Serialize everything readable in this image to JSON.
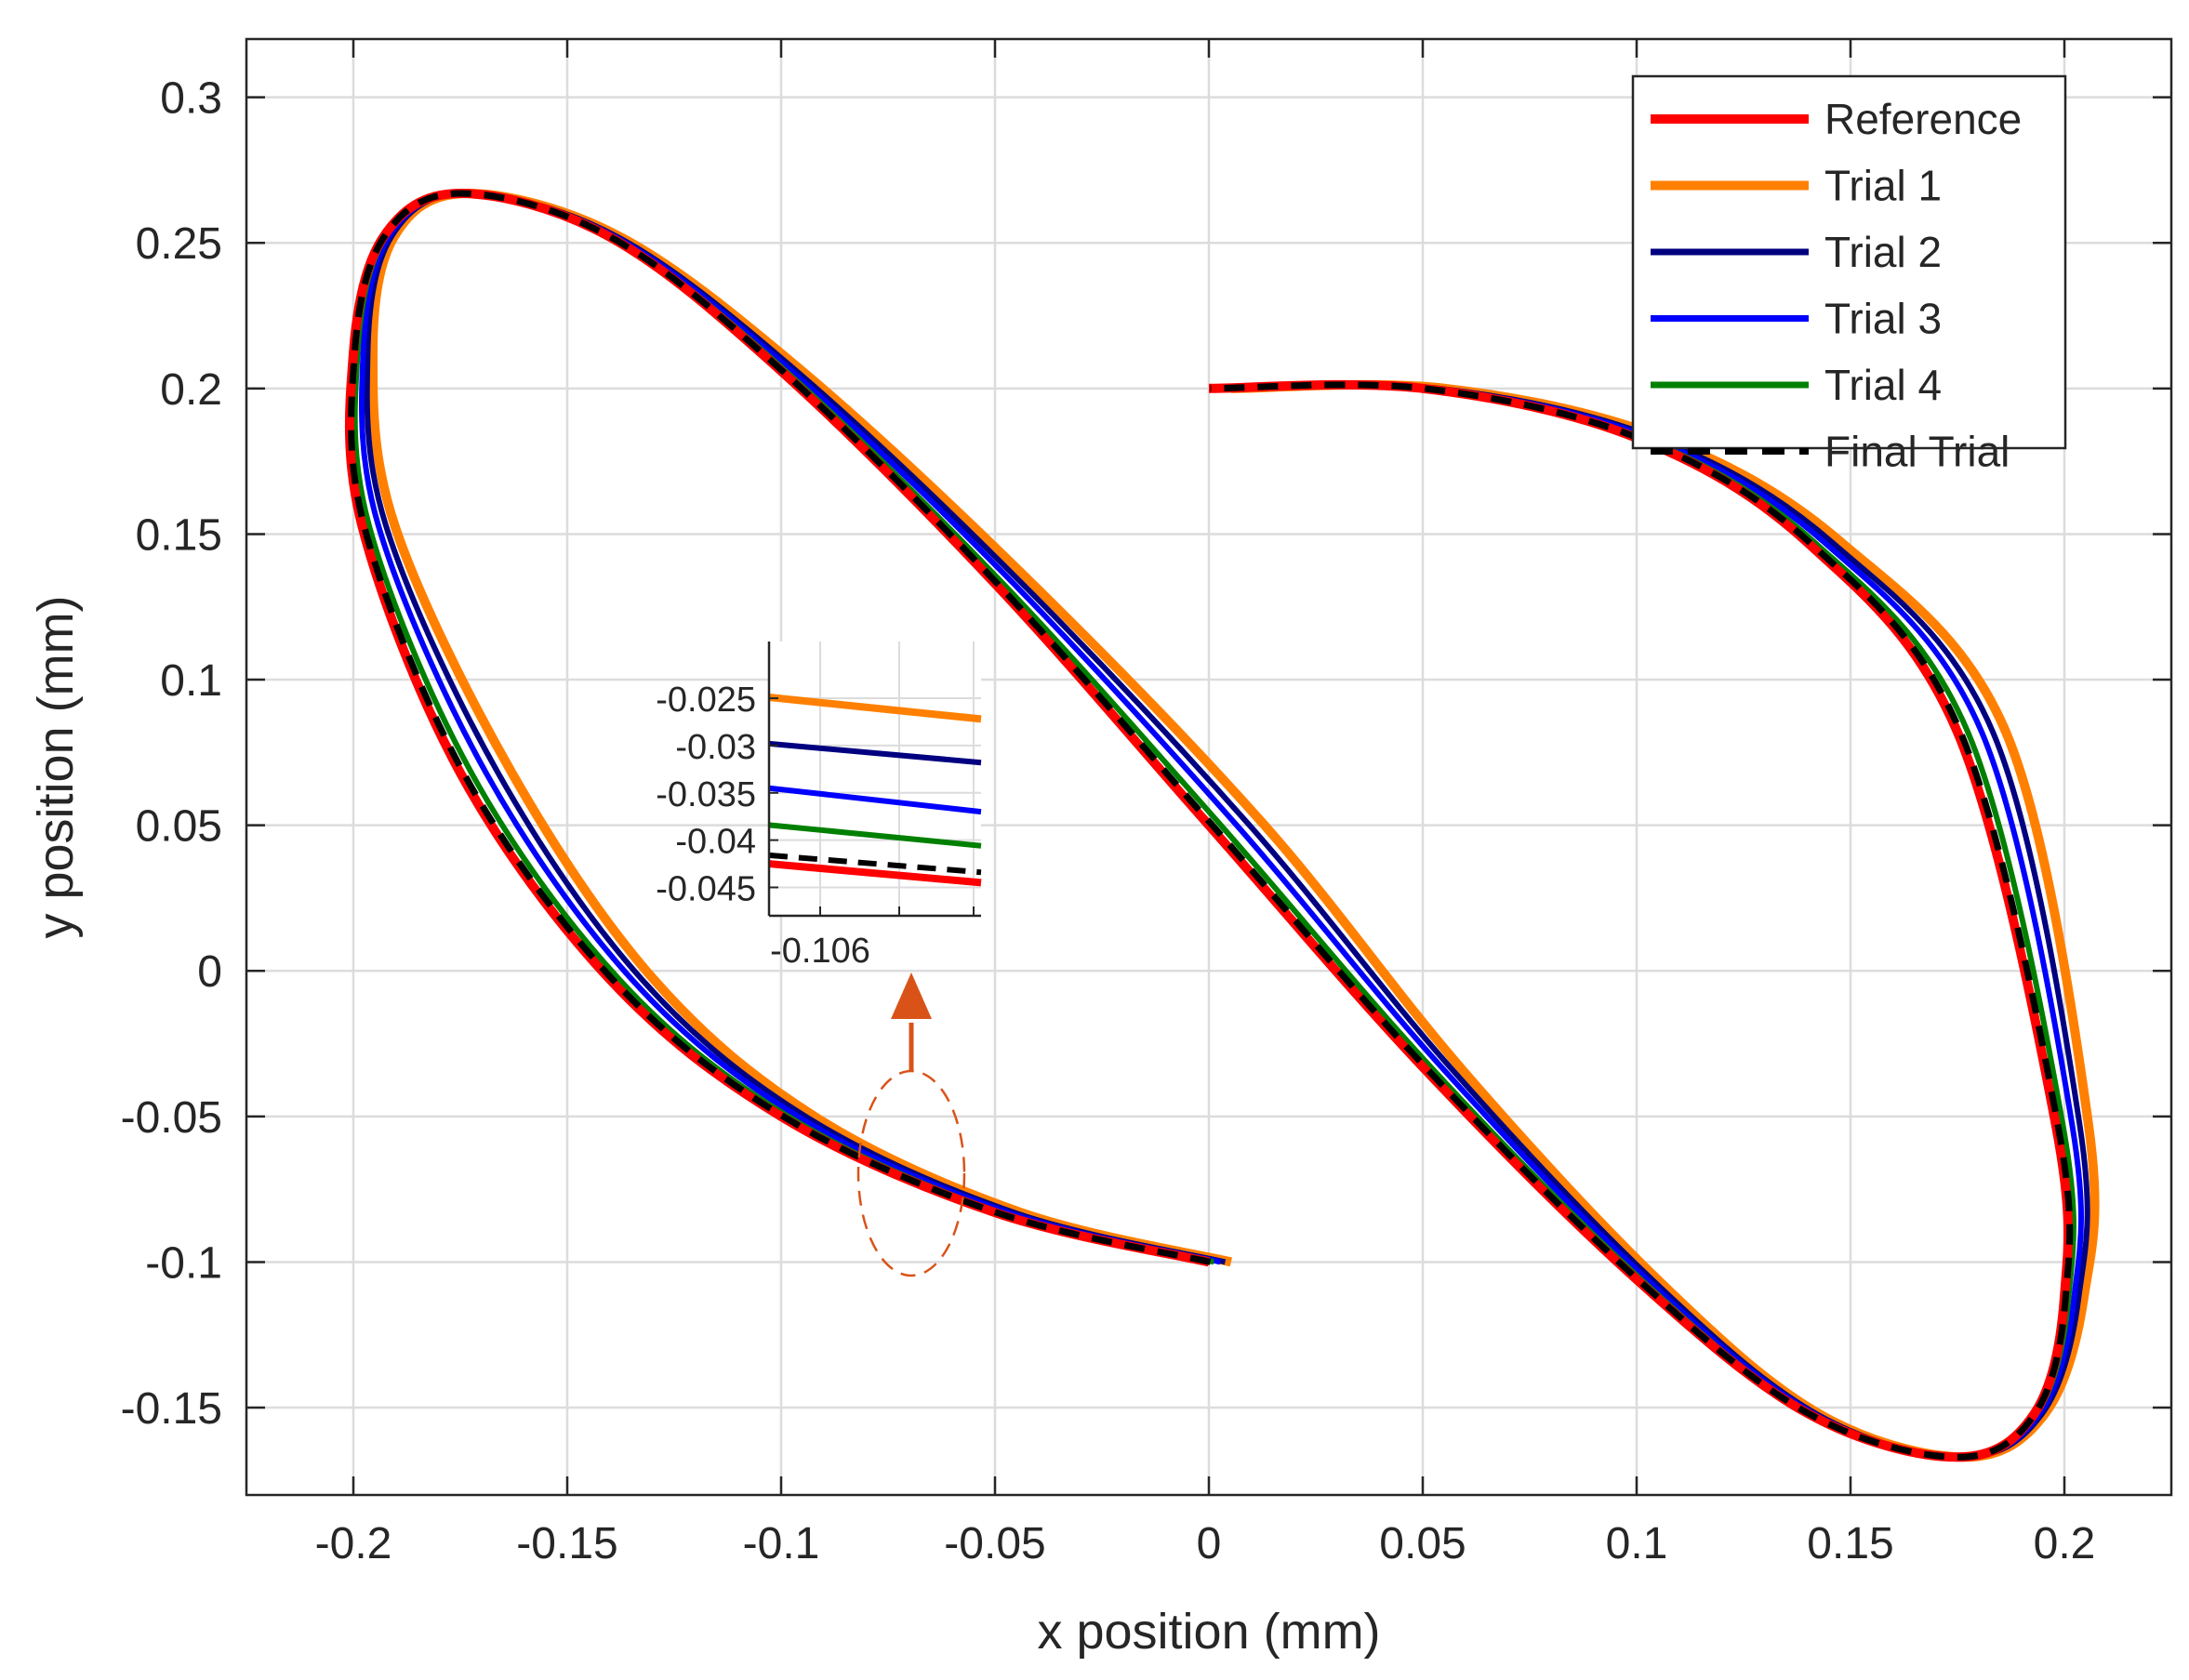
{
  "chart_data": {
    "type": "line",
    "xlabel": "x position (mm)",
    "ylabel": "y position (mm)",
    "xlim": [
      -0.225,
      0.225
    ],
    "ylim": [
      -0.18,
      0.32
    ],
    "x_ticks": [
      -0.2,
      -0.15,
      -0.1,
      -0.05,
      0,
      0.05,
      0.1,
      0.15,
      0.2
    ],
    "x_tick_labels": [
      "-0.2",
      "-0.15",
      "-0.1",
      "-0.05",
      "0",
      "0.05",
      "0.1",
      "0.15",
      "0.2"
    ],
    "y_ticks": [
      -0.15,
      -0.1,
      -0.05,
      0,
      0.05,
      0.1,
      0.15,
      0.2,
      0.25,
      0.3
    ],
    "y_tick_labels": [
      "-0.15",
      "-0.1",
      "-0.05",
      "0",
      "0.05",
      "0.1",
      "0.15",
      "0.2",
      "0.25",
      "0.3"
    ],
    "grid": true,
    "legend_position": "top-right",
    "series": [
      {
        "name": "Reference",
        "color": "#ff0000",
        "style": "solid",
        "x_offset": 0.0,
        "x": [
          0,
          -0.05,
          -0.1,
          -0.14,
          -0.175,
          -0.198,
          -0.2,
          -0.193,
          -0.175,
          -0.14,
          -0.1,
          -0.05,
          0,
          0.05,
          0.1,
          0.14,
          0.175,
          0.193,
          0.2,
          0.198,
          0.175,
          0.14,
          0.1,
          0.05,
          0
        ],
        "y": [
          -0.1,
          -0.083,
          -0.05,
          -0.003,
          0.068,
          0.153,
          0.212,
          0.252,
          0.267,
          0.252,
          0.206,
          0.133,
          0.05,
          -0.033,
          -0.106,
          -0.152,
          -0.167,
          -0.152,
          -0.112,
          -0.053,
          0.082,
          0.147,
          0.183,
          0.2,
          0.2
        ]
      },
      {
        "name": "Trial 1",
        "color": "#ff8000",
        "style": "solid",
        "x_offset": 0.013,
        "x": [
          0,
          -0.05,
          -0.1,
          -0.14,
          -0.175,
          -0.198,
          -0.2,
          -0.193,
          -0.175,
          -0.14,
          -0.1,
          -0.05,
          0,
          0.05,
          0.1,
          0.14,
          0.175,
          0.193,
          0.2,
          0.198,
          0.175,
          0.14,
          0.1,
          0.05,
          0
        ],
        "y": [
          -0.1,
          -0.083,
          -0.05,
          -0.003,
          0.068,
          0.153,
          0.212,
          0.252,
          0.267,
          0.252,
          0.206,
          0.133,
          0.05,
          -0.033,
          -0.106,
          -0.152,
          -0.167,
          -0.152,
          -0.112,
          -0.053,
          0.082,
          0.147,
          0.183,
          0.2,
          0.2
        ]
      },
      {
        "name": "Trial 2",
        "color": "#000080",
        "style": "solid",
        "x_offset": 0.0095,
        "x": [
          0,
          -0.05,
          -0.1,
          -0.14,
          -0.175,
          -0.198,
          -0.2,
          -0.193,
          -0.175,
          -0.14,
          -0.1,
          -0.05,
          0,
          0.05,
          0.1,
          0.14,
          0.175,
          0.193,
          0.2,
          0.198,
          0.175,
          0.14,
          0.1,
          0.05,
          0
        ],
        "y": [
          -0.1,
          -0.083,
          -0.05,
          -0.003,
          0.068,
          0.153,
          0.212,
          0.252,
          0.267,
          0.252,
          0.206,
          0.133,
          0.05,
          -0.033,
          -0.106,
          -0.152,
          -0.167,
          -0.152,
          -0.112,
          -0.053,
          0.082,
          0.147,
          0.183,
          0.2,
          0.2
        ]
      },
      {
        "name": "Trial 3",
        "color": "#0000ff",
        "style": "solid",
        "x_offset": 0.0065,
        "x": [
          0,
          -0.05,
          -0.1,
          -0.14,
          -0.175,
          -0.198,
          -0.2,
          -0.193,
          -0.175,
          -0.14,
          -0.1,
          -0.05,
          0,
          0.05,
          0.1,
          0.14,
          0.175,
          0.193,
          0.2,
          0.198,
          0.175,
          0.14,
          0.1,
          0.05,
          0
        ],
        "y": [
          -0.1,
          -0.083,
          -0.05,
          -0.003,
          0.068,
          0.153,
          0.212,
          0.252,
          0.267,
          0.252,
          0.206,
          0.133,
          0.05,
          -0.033,
          -0.106,
          -0.152,
          -0.167,
          -0.152,
          -0.112,
          -0.053,
          0.082,
          0.147,
          0.183,
          0.2,
          0.2
        ]
      },
      {
        "name": "Trial 4",
        "color": "#008000",
        "style": "solid",
        "x_offset": 0.0028,
        "x": [
          0,
          -0.05,
          -0.1,
          -0.14,
          -0.175,
          -0.198,
          -0.2,
          -0.193,
          -0.175,
          -0.14,
          -0.1,
          -0.05,
          0,
          0.05,
          0.1,
          0.14,
          0.175,
          0.193,
          0.2,
          0.198,
          0.175,
          0.14,
          0.1,
          0.05,
          0
        ],
        "y": [
          -0.1,
          -0.083,
          -0.05,
          -0.003,
          0.068,
          0.153,
          0.212,
          0.252,
          0.267,
          0.252,
          0.206,
          0.133,
          0.05,
          -0.033,
          -0.106,
          -0.152,
          -0.167,
          -0.152,
          -0.112,
          -0.053,
          0.082,
          0.147,
          0.183,
          0.2,
          0.2
        ]
      },
      {
        "name": "Final Trial",
        "color": "#000000",
        "style": "dashed",
        "x_offset": 0.0008,
        "x": [
          0,
          -0.05,
          -0.1,
          -0.14,
          -0.175,
          -0.198,
          -0.2,
          -0.193,
          -0.175,
          -0.14,
          -0.1,
          -0.05,
          0,
          0.05,
          0.1,
          0.14,
          0.175,
          0.193,
          0.2,
          0.198,
          0.175,
          0.14,
          0.1,
          0.05,
          0
        ],
        "y": [
          -0.1,
          -0.083,
          -0.05,
          -0.003,
          0.068,
          0.153,
          0.212,
          0.252,
          0.267,
          0.252,
          0.206,
          0.133,
          0.05,
          -0.033,
          -0.106,
          -0.152,
          -0.167,
          -0.152,
          -0.112,
          -0.053,
          0.082,
          0.147,
          0.183,
          0.2,
          0.2
        ]
      }
    ],
    "inset": {
      "x_tick_labels": [
        "-0.106"
      ],
      "y_tick_labels": [
        "-0.025",
        "-0.03",
        "-0.035",
        "-0.04",
        "-0.045"
      ],
      "ylim": [
        -0.048,
        -0.019
      ],
      "series": [
        {
          "name": "Trial 1",
          "y": [
            -0.0249,
            -0.0272
          ]
        },
        {
          "name": "Trial 2",
          "y": [
            -0.0298,
            -0.0318
          ]
        },
        {
          "name": "Trial 3",
          "y": [
            -0.0345,
            -0.037
          ]
        },
        {
          "name": "Trial 4",
          "y": [
            -0.0384,
            -0.0406
          ]
        },
        {
          "name": "Final Trial",
          "y": [
            -0.0416,
            -0.0434
          ]
        },
        {
          "name": "Reference",
          "y": [
            -0.0425,
            -0.0445
          ]
        }
      ],
      "marker_color": "#d95319",
      "marked_region": {
        "x": -0.068,
        "y": -0.067
      }
    }
  }
}
